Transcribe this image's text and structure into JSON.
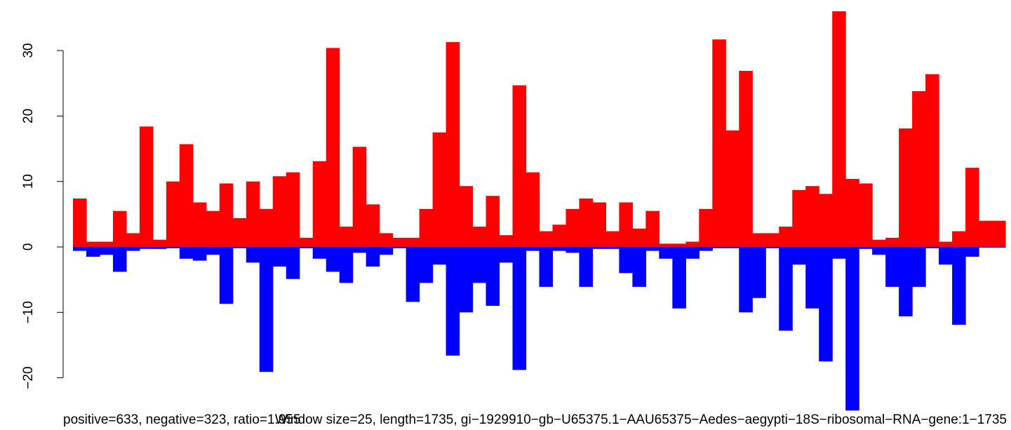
{
  "chart_data": {
    "type": "bar",
    "title": "",
    "xlabel": "",
    "ylabel": "",
    "ylim": [
      -25,
      36
    ],
    "yticks": [
      -20,
      -10,
      0,
      10,
      20,
      30
    ],
    "grid": false,
    "captions": {
      "left": "positive=633, negative=323, ratio=1.955",
      "center": "Window size=25, length=1735, gi−1929910−gb−U65375.1−AAU65375−Aedes−aegypti−18S−ribosomal−RNA−gene:1−1735"
    },
    "series": [
      {
        "color": "#ff0000",
        "values": [
          7.4,
          0.8,
          0.8,
          5.5,
          2.1,
          18.4,
          1.1,
          10.0,
          15.7,
          6.8,
          5.5,
          9.7,
          4.4,
          10.0,
          5.8,
          10.8,
          11.4,
          1.4,
          13.1,
          30.4,
          3.1,
          15.3,
          6.5,
          2.1,
          1.4,
          1.4,
          5.8,
          17.5,
          31.3,
          9.3,
          3.1,
          7.8,
          1.8,
          24.7,
          11.4,
          2.4,
          3.4,
          5.8,
          7.4,
          6.8,
          2.4,
          6.8,
          2.8,
          5.5,
          0.5,
          0.5,
          0.8,
          5.8,
          31.7,
          17.8,
          26.9,
          2.1,
          2.1,
          3.1,
          8.7,
          9.3,
          8.1,
          36.0,
          10.4,
          9.7,
          1.1,
          1.4,
          18.1,
          23.8,
          26.4,
          0.8,
          2.4,
          12.1,
          4.0,
          4.0
        ]
      },
      {
        "color": "#0000ff",
        "values": [
          -0.6,
          -1.5,
          -1.2,
          -3.8,
          -0.6,
          -0.3,
          -0.3,
          -0.2,
          -1.8,
          -2.1,
          -1.2,
          -8.7,
          -0.2,
          -2.4,
          -19.1,
          -3.0,
          -4.9,
          -0.2,
          -1.8,
          -3.8,
          -5.5,
          -0.9,
          -3.0,
          -1.2,
          -0.2,
          -8.4,
          -5.5,
          -2.7,
          -16.6,
          -10.0,
          -5.5,
          -9.0,
          -2.4,
          -18.8,
          -0.6,
          -6.1,
          -0.6,
          -0.9,
          -6.1,
          -0.3,
          -0.3,
          -4.0,
          -6.1,
          -0.6,
          -1.8,
          -9.4,
          -1.8,
          -0.6,
          -0.2,
          -0.2,
          -10.0,
          -7.8,
          -0.2,
          -12.8,
          -2.7,
          -9.4,
          -17.5,
          -1.8,
          -25.0,
          -0.3,
          -1.2,
          -6.1,
          -10.6,
          -6.1,
          -0.2,
          -2.7,
          -11.9,
          -1.5,
          -0.1,
          -0.1
        ]
      }
    ]
  }
}
